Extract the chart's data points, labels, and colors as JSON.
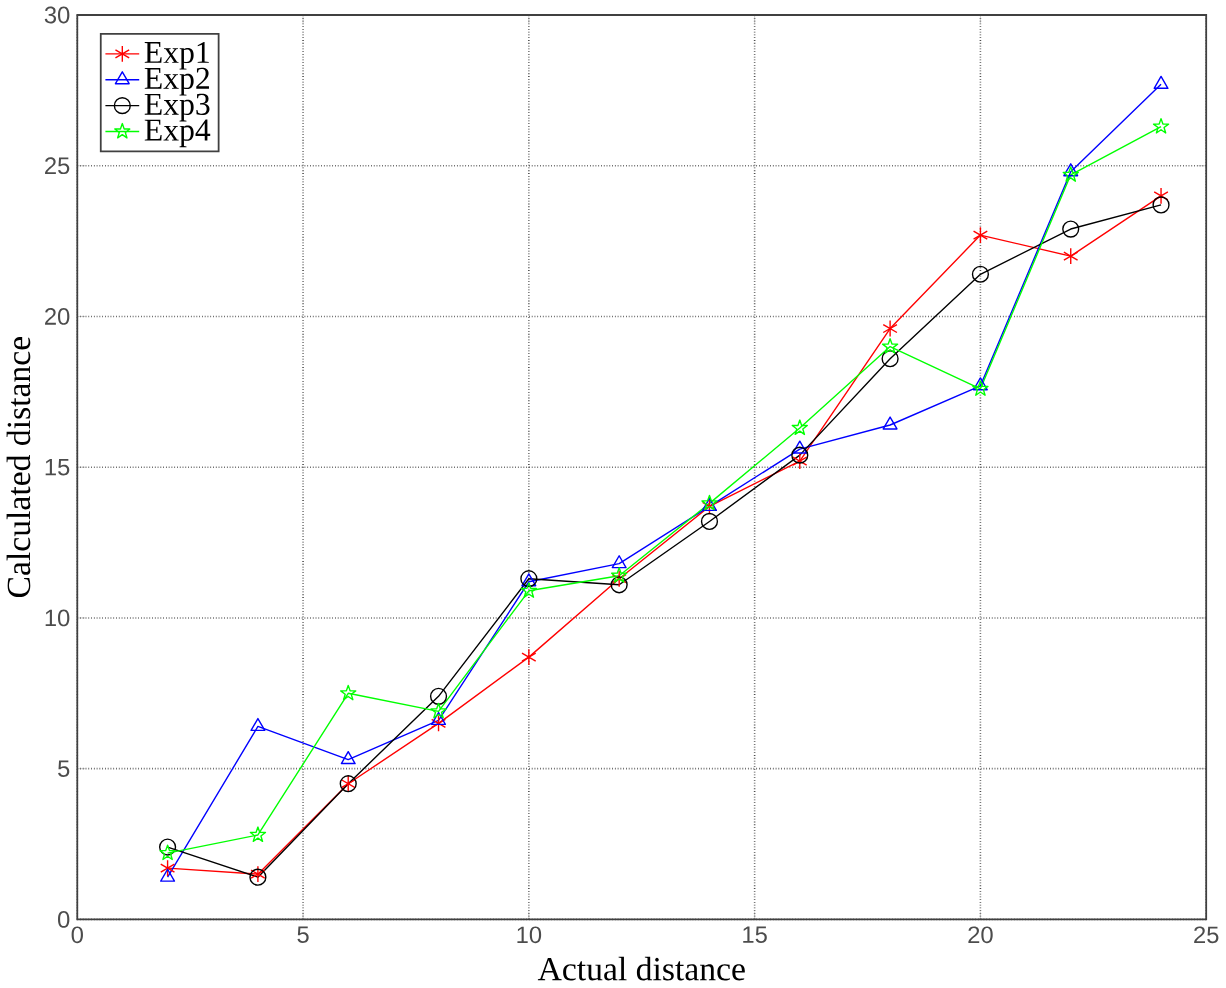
{
  "chart_data": {
    "type": "line",
    "xlabel": "Actual distance",
    "ylabel": "Calculated distance",
    "x": [
      2,
      4,
      6,
      8,
      10,
      12,
      14,
      16,
      18,
      20,
      22,
      24
    ],
    "series": [
      {
        "name": "Exp1",
        "color": "#ff0000",
        "marker": "cross",
        "values": [
          1.7,
          1.5,
          4.5,
          6.5,
          8.7,
          11.3,
          13.7,
          15.2,
          19.6,
          22.7,
          22.0,
          24.0
        ]
      },
      {
        "name": "Exp2",
        "color": "#0000ff",
        "marker": "triangle",
        "values": [
          1.4,
          6.4,
          5.3,
          6.6,
          11.2,
          11.8,
          13.7,
          15.6,
          16.4,
          17.7,
          24.8,
          27.7
        ]
      },
      {
        "name": "Exp3",
        "color": "#000000",
        "marker": "circle",
        "values": [
          2.4,
          1.4,
          4.5,
          7.4,
          11.3,
          11.1,
          13.2,
          15.4,
          18.6,
          21.4,
          22.9,
          23.7
        ]
      },
      {
        "name": "Exp4",
        "color": "#00ff00",
        "marker": "star",
        "values": [
          2.2,
          2.8,
          7.5,
          6.9,
          10.9,
          11.4,
          13.8,
          16.3,
          19.0,
          17.6,
          24.7,
          26.3
        ]
      }
    ],
    "xlim": [
      0,
      25
    ],
    "ylim": [
      0,
      30
    ],
    "xticks": [
      0,
      5,
      10,
      15,
      20,
      25
    ],
    "yticks": [
      0,
      5,
      10,
      15,
      20,
      25,
      30
    ],
    "grid": true,
    "legend": "top left",
    "line_style": "solid"
  }
}
